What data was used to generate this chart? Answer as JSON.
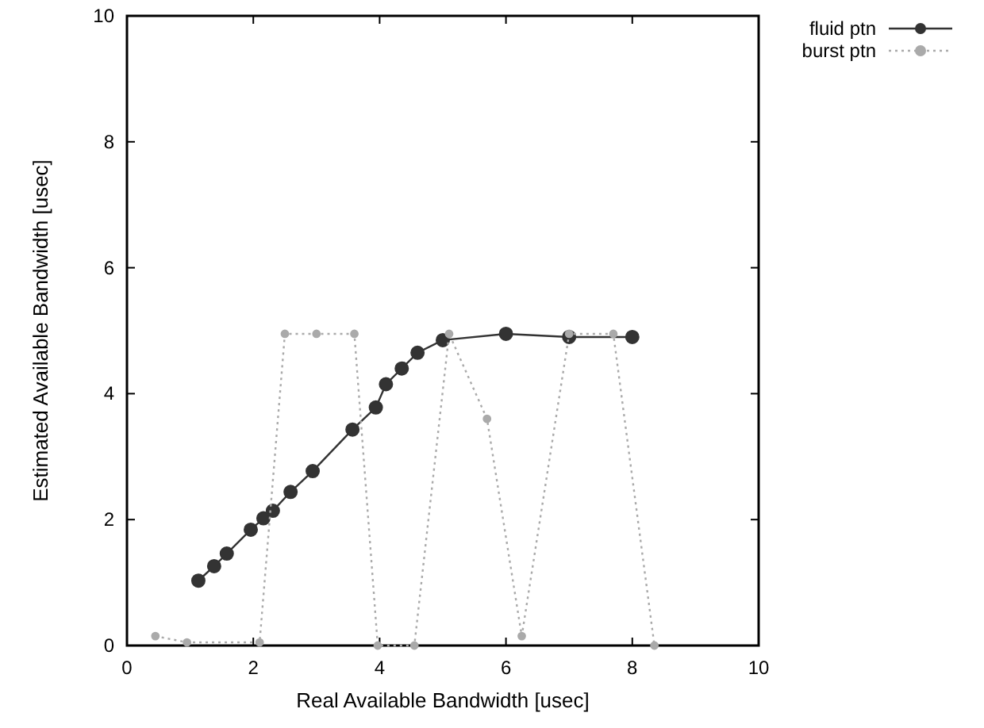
{
  "chart_data": {
    "type": "line",
    "xlabel": "Real Available Bandwidth [usec]",
    "ylabel": "Estimated Available Bandwidth [usec]",
    "xlim": [
      0,
      10
    ],
    "ylim": [
      0,
      10
    ],
    "xticks": [
      0,
      2,
      4,
      6,
      8,
      10
    ],
    "yticks": [
      0,
      2,
      4,
      6,
      8,
      10
    ],
    "grid": false,
    "legend": "top right",
    "marker": "circle",
    "series": [
      {
        "name": "fluid ptn",
        "color": "#333333",
        "line_style": "solid",
        "x": [
          1.13,
          1.38,
          1.58,
          1.96,
          2.16,
          2.31,
          2.59,
          2.94,
          3.57,
          3.94,
          4.1,
          4.35,
          4.6,
          5.0,
          6.0,
          7.0,
          8.0
        ],
        "values": [
          1.03,
          1.26,
          1.46,
          1.84,
          2.02,
          2.14,
          2.44,
          2.77,
          3.43,
          3.78,
          4.15,
          4.4,
          4.65,
          4.85,
          4.95,
          4.9,
          4.9
        ]
      },
      {
        "name": "burst ptn",
        "color": "#aaaaaa",
        "line_style": "dotted",
        "x": [
          0.45,
          0.95,
          2.1,
          2.5,
          3.0,
          3.6,
          3.97,
          4.55,
          5.1,
          5.7,
          6.25,
          7.0,
          7.7,
          8.35
        ],
        "values": [
          0.15,
          0.05,
          0.05,
          4.95,
          4.95,
          4.95,
          0,
          0,
          4.95,
          3.6,
          0.15,
          4.95,
          4.95,
          0
        ]
      }
    ]
  }
}
